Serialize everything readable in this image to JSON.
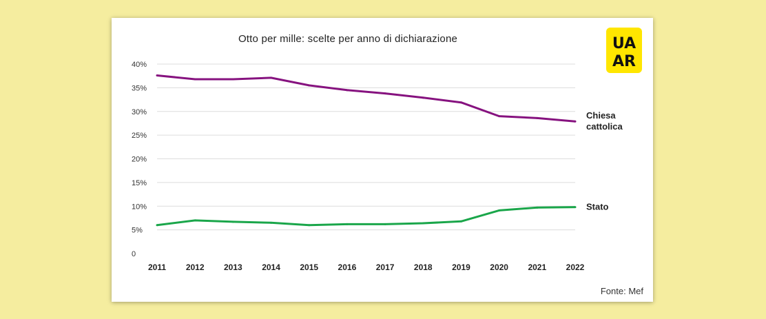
{
  "chart_data": {
    "type": "line",
    "title": "Otto per mille: scelte per anno di dichiarazione",
    "x": [
      "2011",
      "2012",
      "2013",
      "2014",
      "2015",
      "2016",
      "2017",
      "2018",
      "2019",
      "2020",
      "2021",
      "2022"
    ],
    "y_ticks": [
      "0",
      "5%",
      "10%",
      "15%",
      "20%",
      "25%",
      "30%",
      "35%",
      "40%"
    ],
    "ylim": [
      0,
      40
    ],
    "grid": true,
    "series": [
      {
        "name_lines": [
          "Chiesa",
          "cattolica"
        ],
        "color": "#86127f",
        "values": [
          37.6,
          36.8,
          36.8,
          37.1,
          35.5,
          34.5,
          33.8,
          32.9,
          31.9,
          29.0,
          28.6,
          27.9
        ]
      },
      {
        "name_lines": [
          "Stato"
        ],
        "color": "#1aa64a",
        "values": [
          6.0,
          7.0,
          6.7,
          6.5,
          6.0,
          6.2,
          6.2,
          6.4,
          6.8,
          9.1,
          9.7,
          9.8
        ]
      }
    ]
  },
  "source": "Fonte: Mef",
  "logo": {
    "text_top": "UA",
    "text_bottom": "AR",
    "bg_color": "#ffe600"
  }
}
